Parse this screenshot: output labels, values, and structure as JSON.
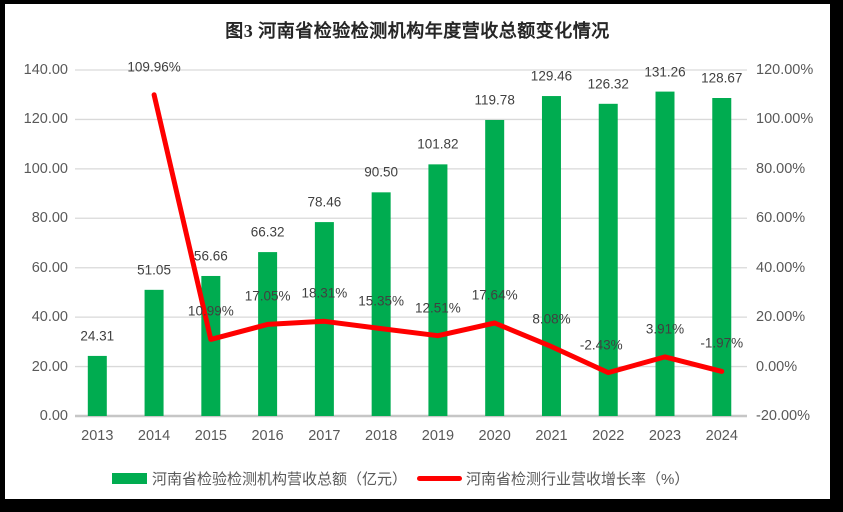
{
  "chart_data": {
    "type": "bar+line-combo",
    "title": "图3  河南省检验检测机构年度营收总额变化情况",
    "categories": [
      "2013",
      "2014",
      "2015",
      "2016",
      "2017",
      "2018",
      "2019",
      "2020",
      "2021",
      "2022",
      "2023",
      "2024"
    ],
    "series": [
      {
        "name": "河南省检验检测机构营收总额（亿元）",
        "type": "bar",
        "axis": "left",
        "color": "#00AC50",
        "values": [
          24.31,
          51.05,
          56.66,
          66.32,
          78.46,
          90.5,
          101.82,
          119.78,
          129.46,
          126.32,
          131.26,
          128.67
        ],
        "labels": [
          "24.31",
          "51.05",
          "56.66",
          "66.32",
          "78.46",
          "90.50",
          "101.82",
          "119.78",
          "129.46",
          "126.32",
          "131.26",
          "128.67"
        ]
      },
      {
        "name": "河南省检测行业营收增长率（%）",
        "type": "line",
        "axis": "right",
        "color": "#FF0000",
        "values": [
          null,
          109.96,
          10.99,
          17.05,
          18.31,
          15.35,
          12.51,
          17.64,
          8.08,
          -2.43,
          3.91,
          -1.97
        ],
        "labels": [
          "",
          "109.96%",
          "10.99%",
          "17.05%",
          "18.31%",
          "15.35%",
          "12.51%",
          "17.64%",
          "8.08%",
          "-2.43%",
          "3.91%",
          "-1.97%"
        ]
      }
    ],
    "left_axis": {
      "min": 0,
      "max": 140,
      "step": 20,
      "ticks": [
        "0.00",
        "20.00",
        "40.00",
        "60.00",
        "80.00",
        "100.00",
        "120.00",
        "140.00"
      ]
    },
    "right_axis": {
      "min": -20,
      "max": 120,
      "step": 20,
      "ticks": [
        "-20.00%",
        "0.00%",
        "20.00%",
        "40.00%",
        "60.00%",
        "80.00%",
        "100.00%",
        "120.00%"
      ]
    },
    "grid": true,
    "grid_color": "#D9D9D9",
    "axis_line_color": "#C6C6C6",
    "data_labels": true,
    "legend_position": "bottom"
  }
}
